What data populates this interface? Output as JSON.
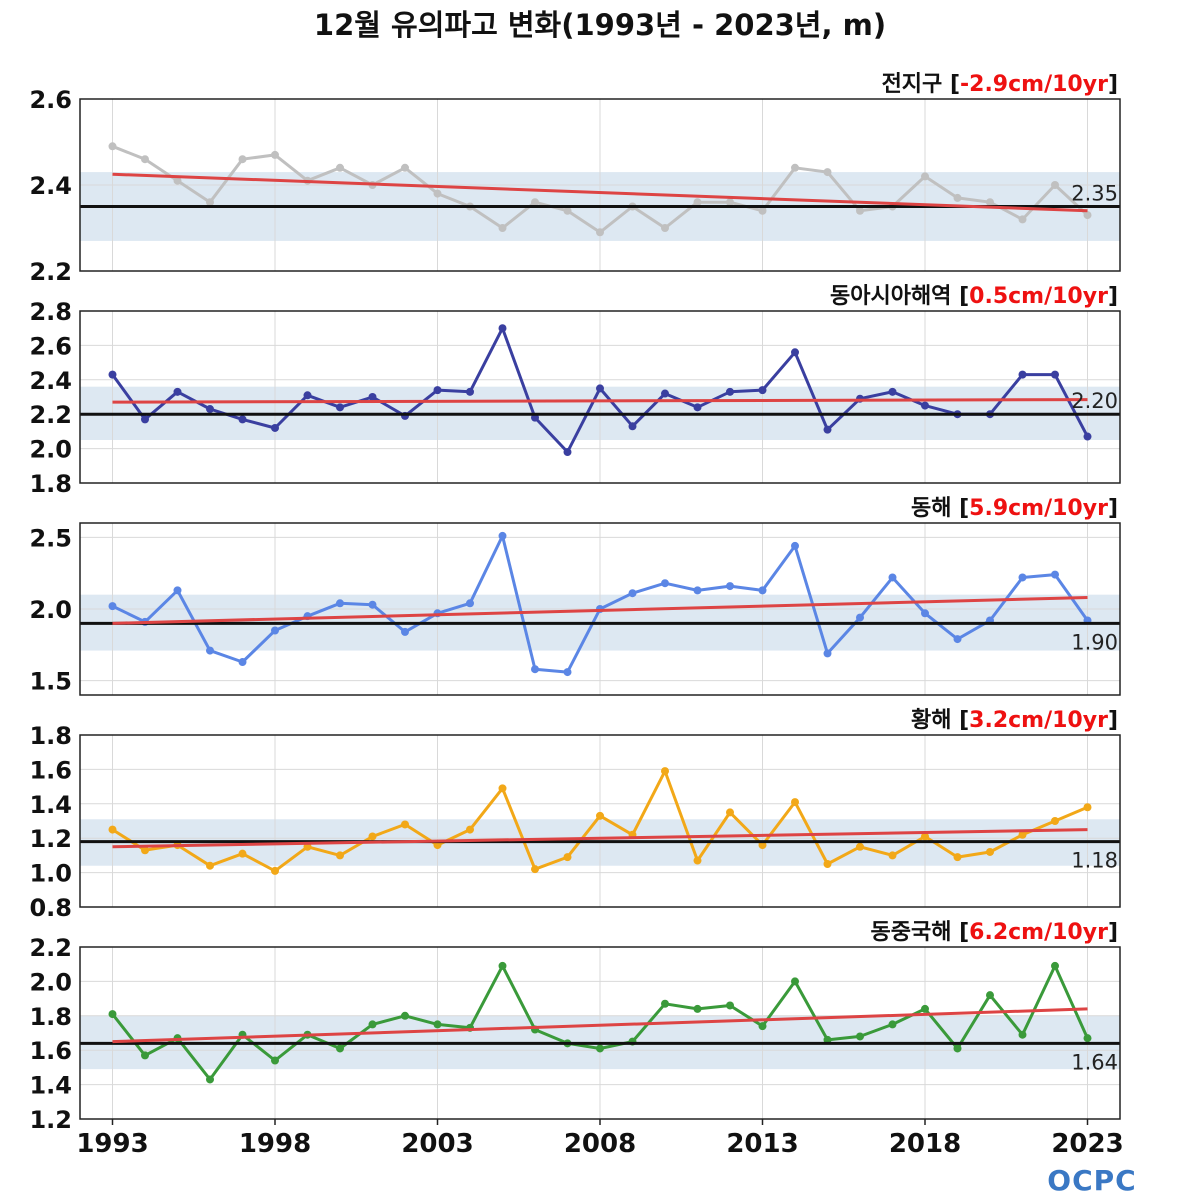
{
  "title": "12월 유의파고 변화(1993년 - 2023년, m)",
  "logo": {
    "text": "OCPC"
  },
  "colors": {
    "band": "#dde8f2",
    "grid": "#d9d9d9",
    "mean_line": "#111111",
    "trend_line": "#dd4444",
    "trend_text": "#ee1111"
  },
  "chart_data": [
    {
      "type": "line",
      "name": "전지구",
      "trend_label": "-2.9cm/10yr",
      "mean": 2.35,
      "mean_label": "2.35",
      "band": [
        2.27,
        2.43
      ],
      "ylim": [
        2.2,
        2.6
      ],
      "yticks": [
        2.2,
        2.4,
        2.6
      ],
      "ytick_labels": [
        "2.2",
        "2.4",
        "2.6"
      ],
      "color": "#c0c0c0",
      "trend": [
        [
          1993,
          2.425
        ],
        [
          2023,
          2.34
        ]
      ],
      "x": [
        1993,
        1994,
        1995,
        1996,
        1997,
        1998,
        1999,
        2000,
        2001,
        2002,
        2003,
        2004,
        2005,
        2006,
        2007,
        2008,
        2009,
        2010,
        2011,
        2012,
        2013,
        2014,
        2015,
        2016,
        2017,
        2018,
        2019,
        2020,
        2021,
        2022,
        2023
      ],
      "values": [
        2.49,
        2.46,
        2.41,
        2.36,
        2.46,
        2.47,
        2.41,
        2.44,
        2.4,
        2.44,
        2.38,
        2.35,
        2.3,
        2.36,
        2.34,
        2.29,
        2.35,
        2.3,
        2.36,
        2.36,
        2.34,
        2.44,
        2.43,
        2.34,
        2.35,
        2.42,
        2.37,
        2.36,
        2.32,
        2.4,
        2.33
      ]
    },
    {
      "type": "line",
      "name": "동아시아해역",
      "trend_label": "0.5cm/10yr",
      "mean": 2.2,
      "mean_label": "2.20",
      "band": [
        2.05,
        2.36
      ],
      "ylim": [
        1.8,
        2.8
      ],
      "yticks": [
        1.8,
        2.0,
        2.2,
        2.4,
        2.6,
        2.8
      ],
      "ytick_labels": [
        "1.8",
        "2.0",
        "2.2",
        "2.4",
        "2.6",
        "2.8"
      ],
      "color": "#3a3fa0",
      "trend": [
        [
          1993,
          2.27
        ],
        [
          2023,
          2.285
        ]
      ],
      "x": [
        1993,
        1994,
        1995,
        1996,
        1997,
        1998,
        1999,
        2000,
        2001,
        2002,
        2003,
        2004,
        2005,
        2006,
        2007,
        2008,
        2009,
        2010,
        2011,
        2012,
        2013,
        2014,
        2015,
        2016,
        2017,
        2018,
        2019,
        2020,
        2021,
        2022,
        2023
      ],
      "values": [
        2.43,
        2.17,
        2.33,
        2.23,
        2.17,
        2.12,
        2.31,
        2.24,
        2.3,
        2.19,
        2.34,
        2.33,
        2.7,
        2.18,
        1.98,
        2.35,
        2.13,
        2.32,
        2.24,
        2.33,
        2.34,
        2.56,
        2.11,
        2.29,
        2.33,
        2.25,
        2.2,
        2.2,
        2.43,
        2.43,
        2.07
      ]
    },
    {
      "type": "line",
      "name": "동해",
      "trend_label": "5.9cm/10yr",
      "mean": 1.9,
      "mean_label": "1.90",
      "band": [
        1.71,
        2.1
      ],
      "ylim": [
        1.4,
        2.6
      ],
      "yticks": [
        1.5,
        2.0,
        2.5
      ],
      "ytick_labels": [
        "1.5",
        "2.0",
        "2.5"
      ],
      "color": "#5b86e5",
      "trend": [
        [
          1993,
          1.9
        ],
        [
          2023,
          2.08
        ]
      ],
      "x": [
        1993,
        1994,
        1995,
        1996,
        1997,
        1998,
        1999,
        2000,
        2001,
        2002,
        2003,
        2004,
        2005,
        2006,
        2007,
        2008,
        2009,
        2010,
        2011,
        2012,
        2013,
        2014,
        2015,
        2016,
        2017,
        2018,
        2019,
        2020,
        2021,
        2022,
        2023
      ],
      "values": [
        2.02,
        1.91,
        2.13,
        1.71,
        1.63,
        1.85,
        1.95,
        2.04,
        2.03,
        1.84,
        1.97,
        2.04,
        2.51,
        1.58,
        1.56,
        2.0,
        2.11,
        2.18,
        2.13,
        2.16,
        2.13,
        2.44,
        1.69,
        1.94,
        2.22,
        1.97,
        1.79,
        1.92,
        2.22,
        2.24,
        1.92
      ]
    },
    {
      "type": "line",
      "name": "황해",
      "trend_label": "3.2cm/10yr",
      "mean": 1.18,
      "mean_label": "1.18",
      "band": [
        1.04,
        1.31
      ],
      "ylim": [
        0.8,
        1.8
      ],
      "yticks": [
        0.8,
        1.0,
        1.2,
        1.4,
        1.6,
        1.8
      ],
      "ytick_labels": [
        "0.8",
        "1.0",
        "1.2",
        "1.4",
        "1.6",
        "1.8"
      ],
      "color": "#f2a818",
      "trend": [
        [
          1993,
          1.15
        ],
        [
          2023,
          1.25
        ]
      ],
      "x": [
        1993,
        1994,
        1995,
        1996,
        1997,
        1998,
        1999,
        2000,
        2001,
        2002,
        2003,
        2004,
        2005,
        2006,
        2007,
        2008,
        2009,
        2010,
        2011,
        2012,
        2013,
        2014,
        2015,
        2016,
        2017,
        2018,
        2019,
        2020,
        2021,
        2022,
        2023
      ],
      "values": [
        1.25,
        1.13,
        1.16,
        1.04,
        1.11,
        1.01,
        1.15,
        1.1,
        1.21,
        1.28,
        1.16,
        1.25,
        1.49,
        1.02,
        1.09,
        1.33,
        1.22,
        1.59,
        1.07,
        1.35,
        1.16,
        1.41,
        1.05,
        1.15,
        1.1,
        1.21,
        1.09,
        1.12,
        1.22,
        1.3,
        1.38
      ]
    },
    {
      "type": "line",
      "name": "동중국해",
      "trend_label": "6.2cm/10yr",
      "mean": 1.64,
      "mean_label": "1.64",
      "band": [
        1.49,
        1.8
      ],
      "ylim": [
        1.2,
        2.2
      ],
      "yticks": [
        1.2,
        1.4,
        1.6,
        1.8,
        2.0,
        2.2
      ],
      "ytick_labels": [
        "1.2",
        "1.4",
        "1.6",
        "1.8",
        "2.0",
        "2.2"
      ],
      "color": "#3a9a3a",
      "trend": [
        [
          1993,
          1.65
        ],
        [
          2023,
          1.84
        ]
      ],
      "x": [
        1993,
        1994,
        1995,
        1996,
        1997,
        1998,
        1999,
        2000,
        2001,
        2002,
        2003,
        2004,
        2005,
        2006,
        2007,
        2008,
        2009,
        2010,
        2011,
        2012,
        2013,
        2014,
        2015,
        2016,
        2017,
        2018,
        2019,
        2020,
        2021,
        2022,
        2023
      ],
      "values": [
        1.81,
        1.57,
        1.67,
        1.43,
        1.69,
        1.54,
        1.69,
        1.61,
        1.75,
        1.8,
        1.75,
        1.73,
        2.09,
        1.72,
        1.64,
        1.61,
        1.65,
        1.87,
        1.84,
        1.86,
        1.74,
        2.0,
        1.66,
        1.68,
        1.75,
        1.84,
        1.61,
        1.92,
        1.69,
        2.09,
        1.67
      ]
    }
  ],
  "x_axis": {
    "xlim": [
      1992,
      2024
    ],
    "ticks": [
      1993,
      1998,
      2003,
      2008,
      2013,
      2018,
      2023
    ],
    "tick_labels": [
      "1993",
      "1998",
      "2003",
      "2008",
      "2013",
      "2018",
      "2023"
    ]
  }
}
